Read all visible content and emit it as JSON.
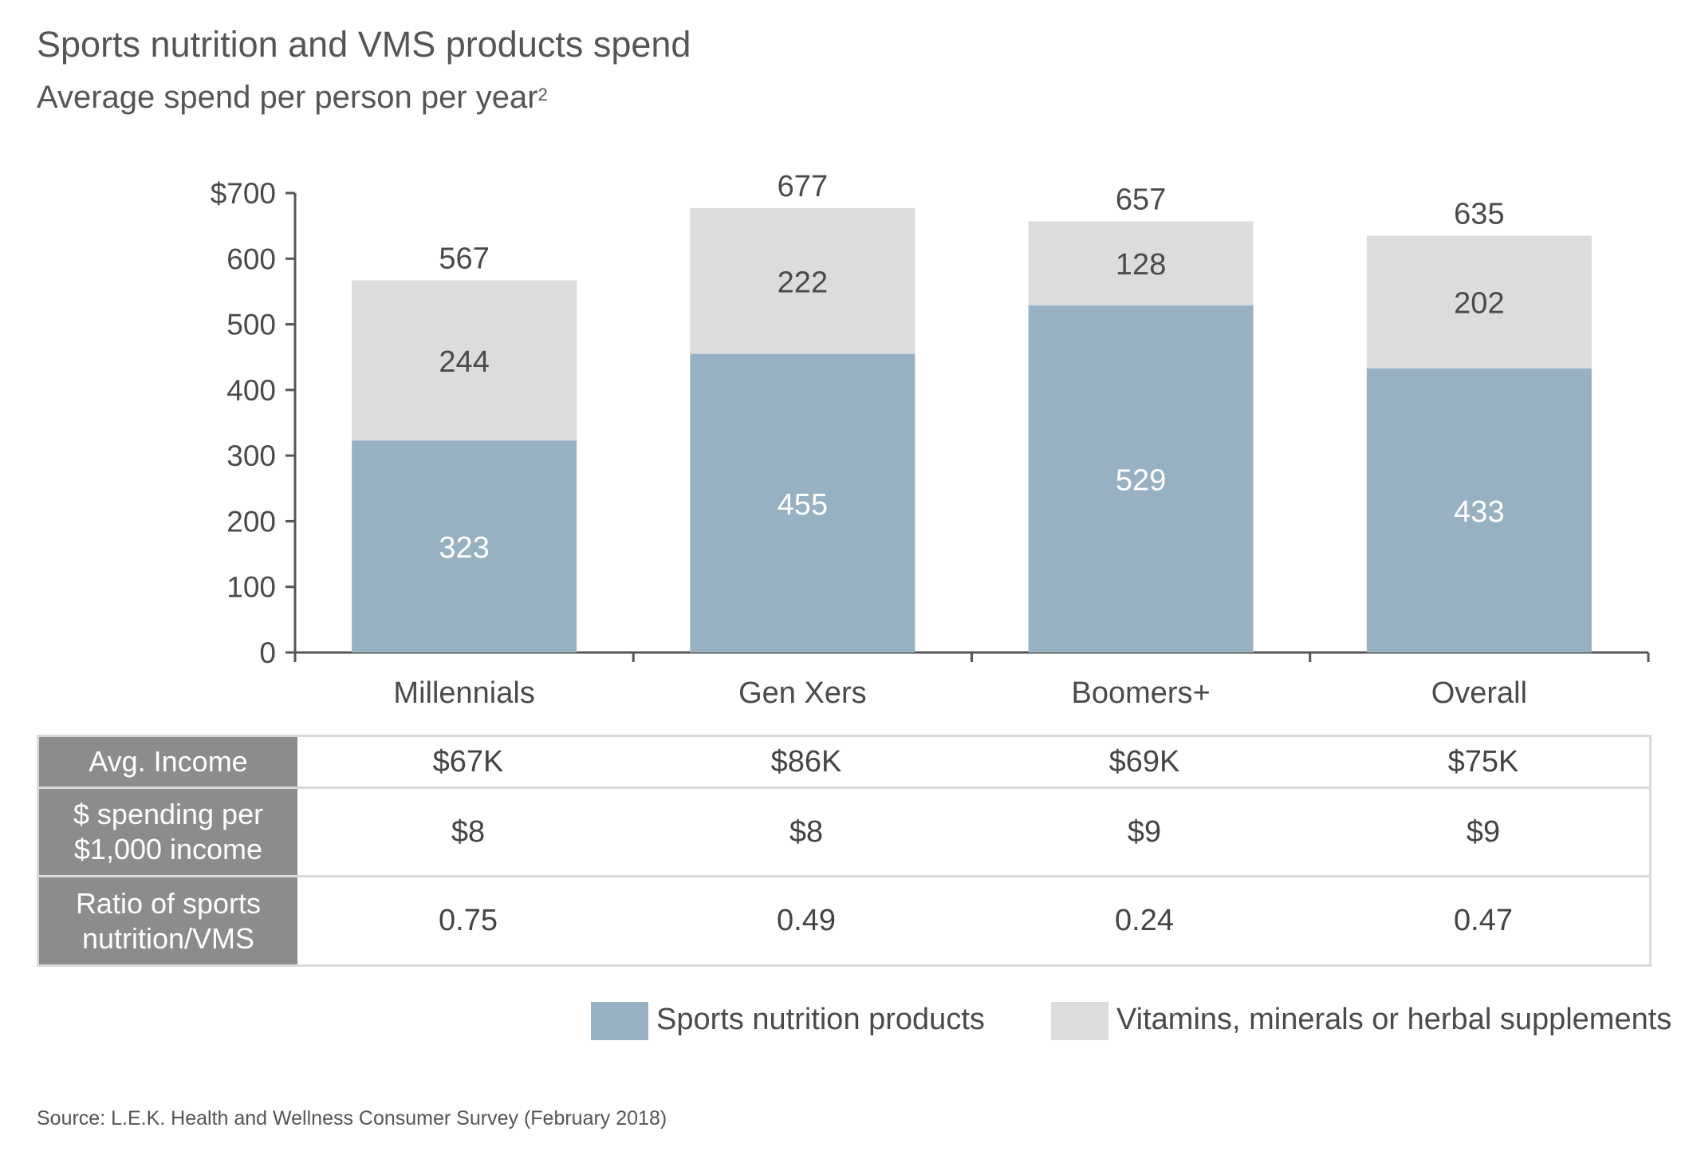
{
  "title": "Sports nutrition and VMS products spend",
  "subtitle": "Average spend per person per year",
  "subtitle_sup": "2",
  "chart_data": {
    "type": "bar",
    "stacked": true,
    "categories": [
      "Millennials",
      "Gen Xers",
      "Boomers+",
      "Overall"
    ],
    "series": [
      {
        "name": "Sports nutrition products",
        "values": [
          323,
          455,
          529,
          433
        ],
        "color": "#97b1c3"
      },
      {
        "name": "Vitamins, minerals or herbal supplements",
        "values": [
          244,
          222,
          128,
          202
        ],
        "color": "#dcdcdb"
      }
    ],
    "totals": [
      567,
      677,
      657,
      635
    ],
    "ylim": [
      0,
      700
    ],
    "yticks": [
      0,
      100,
      200,
      300,
      400,
      500,
      600,
      700
    ],
    "ytick_labels": [
      "0",
      "100",
      "200",
      "300",
      "400",
      "500",
      "600",
      "$700"
    ],
    "grid": false,
    "legend_position": "bottom-right"
  },
  "table": {
    "rows": [
      {
        "label": "Avg. Income",
        "values": [
          "$67K",
          "$86K",
          "$69K",
          "$75K"
        ]
      },
      {
        "label": "$ spending per\n$1,000 income",
        "values": [
          "$8",
          "$8",
          "$9",
          "$9"
        ]
      },
      {
        "label": "Ratio of sports\nnutrition/VMS",
        "values": [
          "0.75",
          "0.49",
          "0.24",
          "0.47"
        ]
      }
    ]
  },
  "legend": {
    "items": [
      {
        "label": "Sports nutrition products",
        "color": "#97b1c3"
      },
      {
        "label": "Vitamins, minerals or herbal supplements",
        "color": "#dcdcdb"
      }
    ]
  },
  "source": "Source: L.E.K. Health and Wellness Consumer Survey (February 2018)"
}
